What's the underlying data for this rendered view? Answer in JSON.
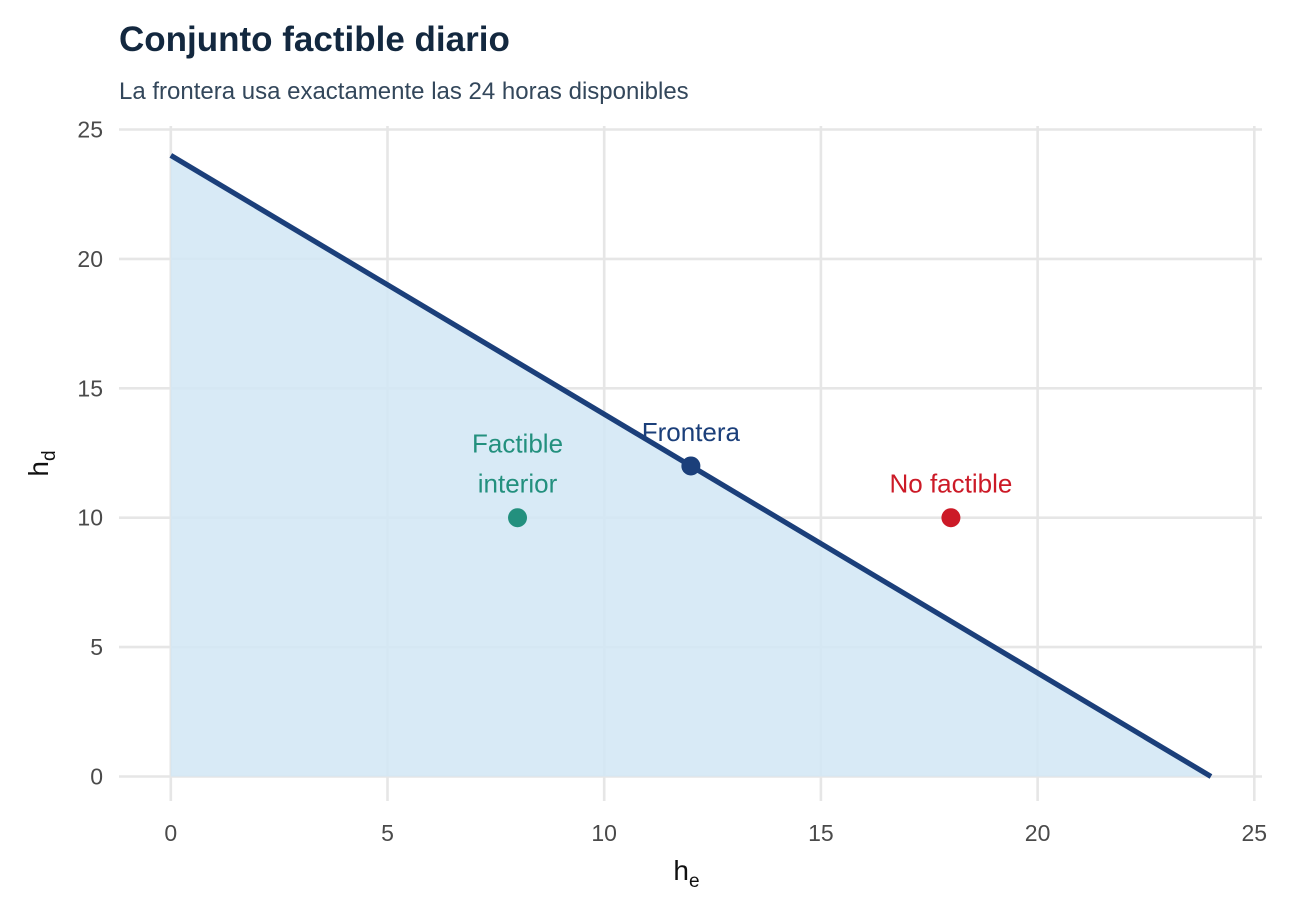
{
  "chart_data": {
    "type": "area",
    "title": "Conjunto factible diario",
    "subtitle": "La frontera usa exactamente las 24 horas disponibles",
    "xlabel": {
      "base": "h",
      "sub": "e"
    },
    "ylabel": {
      "base": "h",
      "sub": "d"
    },
    "xlim": [
      0,
      25
    ],
    "ylim": [
      0,
      25
    ],
    "xticks": [
      0,
      5,
      10,
      15,
      20,
      25
    ],
    "yticks": [
      0,
      5,
      10,
      15,
      20,
      25
    ],
    "grid": true,
    "frontier": {
      "x": [
        0,
        24
      ],
      "y": [
        24,
        0
      ],
      "line_color": "#1b3f7a",
      "fill_color": "#d3e7f5"
    },
    "points": [
      {
        "x": 8,
        "y": 10,
        "label_lines": [
          "Factible",
          "interior"
        ],
        "color": "#23907e"
      },
      {
        "x": 12,
        "y": 12,
        "label_lines": [
          "Frontera"
        ],
        "color": "#1b3f7a"
      },
      {
        "x": 18,
        "y": 10,
        "label_lines": [
          "No factible"
        ],
        "color": "#cc1a27"
      }
    ]
  }
}
